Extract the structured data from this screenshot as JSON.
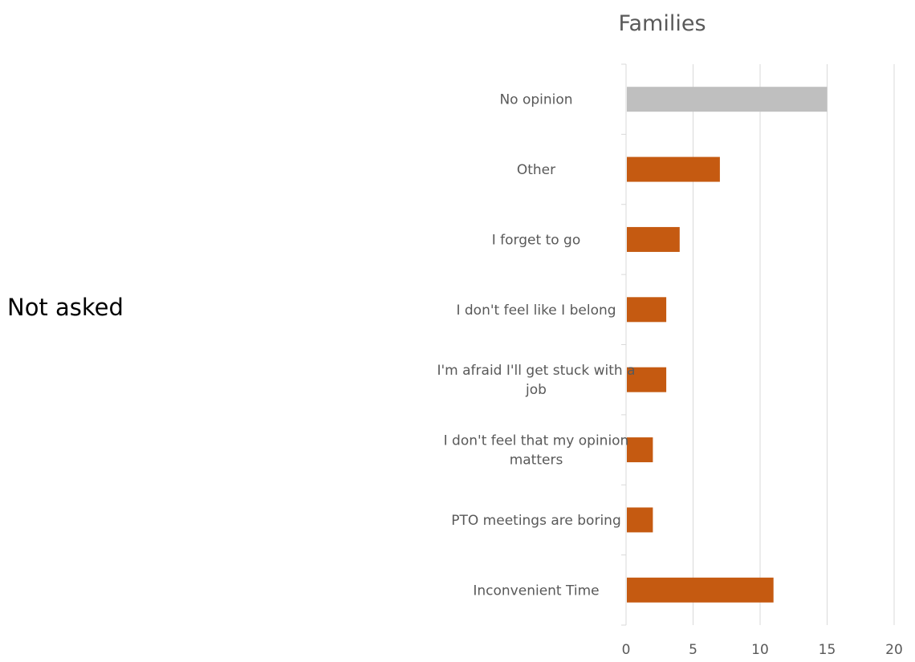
{
  "side_note": "Not asked",
  "chart_data": {
    "type": "bar",
    "orientation": "horizontal",
    "title": "Families",
    "xlabel": "",
    "ylabel": "",
    "xlim": [
      0,
      20
    ],
    "x_ticks": [
      0,
      5,
      10,
      15,
      20
    ],
    "grid": true,
    "legend": "none",
    "categories": [
      "No opinion",
      "Other",
      "I forget to go",
      "I don't feel like I belong",
      "I'm afraid I'll get stuck with a job",
      "I don't feel that my opinion matters",
      "PTO meetings are boring",
      "Inconvenient Time"
    ],
    "category_label_lines": [
      [
        "No opinion"
      ],
      [
        "Other"
      ],
      [
        "I forget to go"
      ],
      [
        "I don't feel like I belong"
      ],
      [
        "I'm afraid I'll get stuck with a",
        "job"
      ],
      [
        "I don't feel that my opinion",
        "matters"
      ],
      [
        "PTO meetings are boring"
      ],
      [
        "Inconvenient Time"
      ]
    ],
    "values": [
      15,
      7,
      4,
      3,
      3,
      2,
      2,
      11
    ],
    "bar_colors": [
      "#bfbfbf",
      "#c55a11",
      "#c55a11",
      "#c55a11",
      "#c55a11",
      "#c55a11",
      "#c55a11",
      "#c55a11"
    ],
    "colors": {
      "highlight": "#c55a11",
      "neutral": "#bfbfbf",
      "gridline": "#d9d9d9",
      "text": "#595959"
    }
  }
}
